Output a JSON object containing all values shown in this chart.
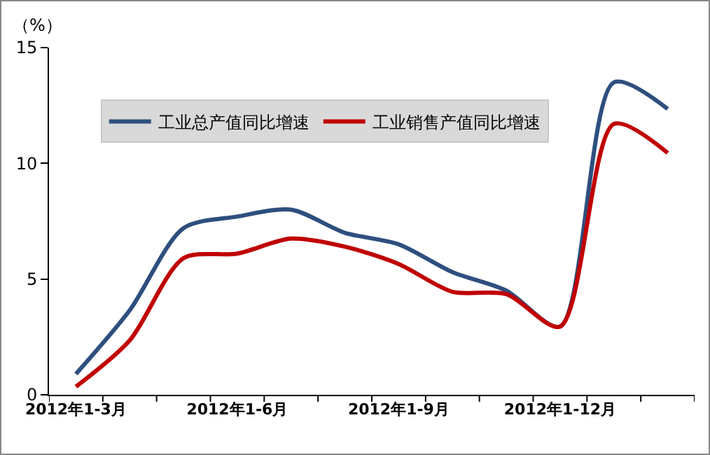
{
  "chart_data": {
    "type": "line",
    "ylabel": "（%）",
    "categories": [
      "2012年1-3月",
      null,
      null,
      "2012年1-6月",
      null,
      null,
      "2012年1-9月",
      null,
      null,
      "2012年1-12月",
      null,
      null
    ],
    "series": [
      {
        "name": "工业总产值同比增速",
        "color": "#2e4f7e",
        "values": [
          0.9,
          3.65,
          7.2,
          7.7,
          8.0,
          7.0,
          6.5,
          5.3,
          4.5,
          2.95,
          13.5,
          12.35
        ]
      },
      {
        "name": "工业销售产值同比增速",
        "color": "#c00000",
        "values": [
          0.35,
          2.35,
          5.9,
          6.1,
          6.75,
          6.4,
          5.65,
          4.45,
          4.35,
          2.95,
          11.7,
          10.45
        ]
      }
    ],
    "ylim": [
      0,
      15
    ],
    "yticks": [
      0,
      5,
      10,
      15
    ],
    "grid": false,
    "legend": "top left",
    "marker": "none",
    "line_style": "solid"
  }
}
